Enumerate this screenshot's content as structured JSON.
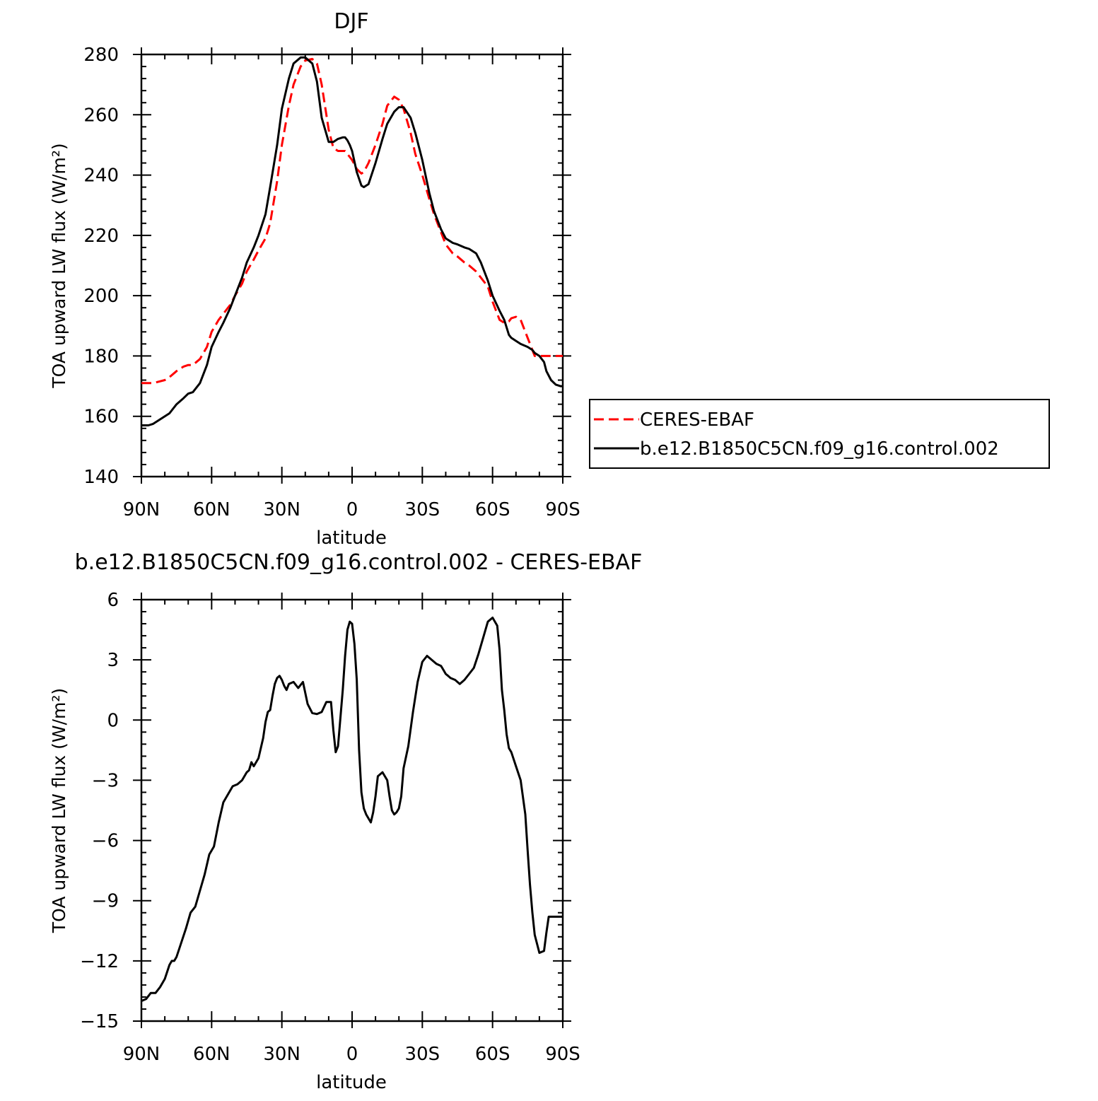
{
  "chart_data": [
    {
      "type": "line",
      "title": "DJF",
      "xlabel": "latitude",
      "ylabel": "TOA upward LW flux (W/m²)",
      "xlim": [
        90,
        -90
      ],
      "ylim": [
        140,
        280
      ],
      "x_ticks": [
        {
          "value": 90,
          "label": "90N"
        },
        {
          "value": 60,
          "label": "60N"
        },
        {
          "value": 30,
          "label": "30N"
        },
        {
          "value": 0,
          "label": "0"
        },
        {
          "value": -30,
          "label": "30S"
        },
        {
          "value": -60,
          "label": "60S"
        },
        {
          "value": -90,
          "label": "90S"
        }
      ],
      "y_ticks": [
        {
          "value": 140,
          "label": "140"
        },
        {
          "value": 160,
          "label": "160"
        },
        {
          "value": 180,
          "label": "180"
        },
        {
          "value": 200,
          "label": "200"
        },
        {
          "value": 220,
          "label": "220"
        },
        {
          "value": 240,
          "label": "240"
        },
        {
          "value": 260,
          "label": "260"
        },
        {
          "value": 280,
          "label": "280"
        }
      ],
      "legend_position": "right",
      "series": [
        {
          "name": "CERES-EBAF",
          "color": "#ff0000",
          "dash": "dashed",
          "x": [
            90,
            85,
            80,
            78,
            75,
            72,
            70,
            68,
            65,
            62,
            60,
            57,
            55,
            52,
            50,
            47,
            45,
            42,
            40,
            37,
            35,
            32,
            30,
            27,
            25,
            22,
            20,
            17,
            15,
            13,
            10,
            8,
            6,
            4,
            3,
            2,
            1,
            0,
            -2,
            -4,
            -5,
            -7,
            -10,
            -13,
            -15,
            -18,
            -20,
            -22,
            -25,
            -27,
            -30,
            -33,
            -35,
            -38,
            -40,
            -43,
            -45,
            -48,
            -50,
            -53,
            -55,
            -58,
            -60,
            -63,
            -65,
            -67,
            -68,
            -70,
            -72,
            -75,
            -77,
            -78,
            -80,
            -82,
            -83,
            -85,
            -87,
            -89,
            -90
          ],
          "values": [
            171,
            171,
            172,
            173,
            175,
            176.5,
            177,
            177,
            179,
            183,
            188,
            192,
            194,
            197,
            200,
            204,
            208,
            212,
            215,
            219,
            224,
            238,
            250,
            263,
            270,
            276,
            278,
            278.5,
            277,
            270,
            255,
            249,
            248,
            248,
            248,
            247,
            246,
            245,
            242,
            240.5,
            241,
            244,
            250,
            257,
            263,
            266,
            265,
            262,
            254,
            247,
            240,
            232,
            227,
            221,
            217,
            214,
            213,
            211,
            210,
            208,
            206,
            203,
            198,
            192,
            191,
            191.5,
            192.5,
            193,
            192,
            186,
            182,
            180,
            180,
            180,
            180,
            180,
            180,
            180,
            180
          ]
        },
        {
          "name": "b.e12.B1850C5CN.f09_g16.control.002",
          "color": "#000000",
          "dash": "solid",
          "x": [
            90,
            87,
            85,
            83,
            80,
            78,
            75,
            72,
            70,
            68,
            65,
            62,
            60,
            57,
            55,
            52,
            50,
            47,
            45,
            42,
            40,
            37,
            35,
            32,
            30,
            27,
            25,
            22,
            20,
            17,
            15,
            13,
            10,
            8,
            6,
            4,
            3,
            2,
            1,
            0,
            -2,
            -4,
            -5,
            -7,
            -10,
            -13,
            -15,
            -18,
            -20,
            -22,
            -25,
            -27,
            -30,
            -33,
            -35,
            -38,
            -40,
            -43,
            -45,
            -48,
            -50,
            -53,
            -55,
            -58,
            -60,
            -63,
            -65,
            -67,
            -68,
            -70,
            -72,
            -75,
            -77,
            -78,
            -80,
            -82,
            -83,
            -85,
            -87,
            -89,
            -90
          ],
          "values": [
            157,
            157,
            157.5,
            158.5,
            160,
            161,
            164,
            166,
            167.5,
            168,
            171,
            177,
            183,
            188,
            191,
            196,
            200,
            206,
            211,
            216,
            220,
            227,
            236,
            250,
            262,
            272,
            277,
            279,
            279,
            277,
            271,
            259,
            251,
            251,
            252,
            252.5,
            252.5,
            251.5,
            250,
            248,
            241,
            236.5,
            236,
            237,
            244,
            252,
            257,
            261,
            262.5,
            262.5,
            259,
            254,
            245,
            234,
            228,
            222,
            219,
            217.5,
            217,
            216,
            215.5,
            214,
            211,
            205,
            200,
            195,
            192,
            187,
            186,
            185,
            184,
            183,
            182,
            181,
            180,
            178,
            175,
            172,
            170.5,
            170,
            170
          ]
        }
      ]
    },
    {
      "type": "line",
      "title": "b.e12.B1850C5CN.f09_g16.control.002 - CERES-EBAF",
      "xlabel": "latitude",
      "ylabel": "TOA upward LW flux (W/m²)",
      "xlim": [
        90,
        -90
      ],
      "ylim": [
        -15,
        6
      ],
      "x_ticks": [
        {
          "value": 90,
          "label": "90N"
        },
        {
          "value": 60,
          "label": "60N"
        },
        {
          "value": 30,
          "label": "30N"
        },
        {
          "value": 0,
          "label": "0"
        },
        {
          "value": -30,
          "label": "30S"
        },
        {
          "value": -60,
          "label": "60S"
        },
        {
          "value": -90,
          "label": "90S"
        }
      ],
      "y_ticks": [
        {
          "value": -15,
          "label": "−15"
        },
        {
          "value": -12,
          "label": "−12"
        },
        {
          "value": -9,
          "label": "−9"
        },
        {
          "value": -6,
          "label": "−6"
        },
        {
          "value": -3,
          "label": "−3"
        },
        {
          "value": 0,
          "label": "0"
        },
        {
          "value": 3,
          "label": "3"
        },
        {
          "value": 6,
          "label": "6"
        }
      ],
      "series": [
        {
          "color": "#000000",
          "dash": "solid",
          "x": [
            90,
            88,
            86,
            84,
            82,
            80,
            78,
            77,
            76,
            75,
            73,
            71,
            69,
            67,
            65,
            63,
            61,
            59,
            57,
            55,
            53,
            51,
            49,
            47,
            45,
            44,
            43,
            42,
            40,
            38,
            37,
            36,
            35,
            34,
            33,
            32,
            31,
            30,
            29,
            28,
            27,
            25,
            23,
            21,
            19,
            17,
            15,
            13,
            11,
            9,
            8,
            7,
            6,
            4,
            3,
            2,
            1,
            0,
            -1,
            -2,
            -3,
            -4,
            -5,
            -6,
            -7,
            -8,
            -9,
            -10,
            -11,
            -13,
            -15,
            -16,
            -17,
            -18,
            -19,
            -20,
            -21,
            -22,
            -24,
            -26,
            -28,
            -30,
            -32,
            -34,
            -36,
            -38,
            -39,
            -40,
            -41,
            -42,
            -44,
            -46,
            -48,
            -50,
            -52,
            -54,
            -56,
            -58,
            -60,
            -62,
            -63,
            -64,
            -65,
            -66,
            -67,
            -68,
            -70,
            -72,
            -74,
            -75,
            -76,
            -77,
            -78,
            -80,
            -82,
            -83,
            -84,
            -85,
            -86,
            -87,
            -88,
            -89,
            -90
          ],
          "values": [
            -14,
            -13.9,
            -13.6,
            -13.6,
            -13.3,
            -12.9,
            -12.2,
            -12,
            -12,
            -11.8,
            -11.1,
            -10.4,
            -9.6,
            -9.3,
            -8.5,
            -7.7,
            -6.7,
            -6.3,
            -5.1,
            -4.1,
            -3.7,
            -3.3,
            -3.2,
            -3.0,
            -2.6,
            -2.5,
            -2.1,
            -2.3,
            -1.9,
            -0.9,
            -0.1,
            0.4,
            0.5,
            1.2,
            1.8,
            2.1,
            2.2,
            2.0,
            1.7,
            1.5,
            1.8,
            1.9,
            1.6,
            1.9,
            0.8,
            0.35,
            0.3,
            0.4,
            0.9,
            0.9,
            -0.5,
            -1.6,
            -1.3,
            1.5,
            3.2,
            4.5,
            4.9,
            4.8,
            3.8,
            2.0,
            -1.5,
            -3.6,
            -4.4,
            -4.7,
            -4.9,
            -5.1,
            -4.6,
            -3.8,
            -2.8,
            -2.6,
            -3.0,
            -3.8,
            -4.5,
            -4.7,
            -4.6,
            -4.4,
            -3.8,
            -2.4,
            -1.3,
            0.4,
            1.9,
            2.9,
            3.2,
            3.0,
            2.8,
            2.7,
            2.5,
            2.3,
            2.2,
            2.1,
            2.0,
            1.8,
            2.0,
            2.3,
            2.6,
            3.3,
            4.1,
            4.9,
            5.1,
            4.7,
            3.5,
            1.5,
            0.5,
            -0.7,
            -1.4,
            -1.6,
            -2.3,
            -3.0,
            -4.7,
            -6.5,
            -8.2,
            -9.6,
            -10.7,
            -11.6,
            -11.5,
            -10.6,
            -9.8,
            -9.8,
            -9.8,
            -9.8,
            -9.8,
            -9.8,
            -9.8
          ]
        }
      ]
    }
  ]
}
